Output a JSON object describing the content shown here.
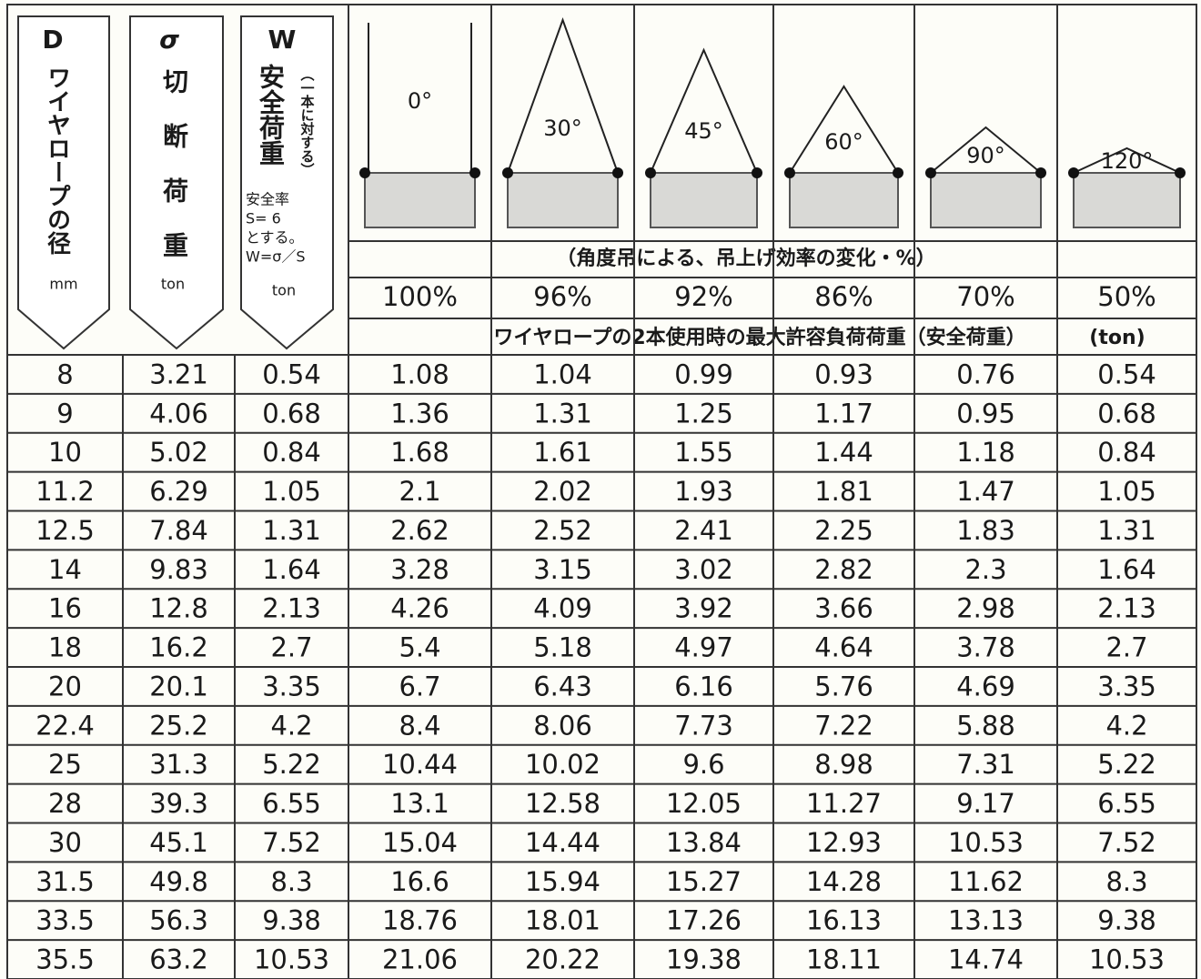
{
  "header": {
    "col_d": {
      "symbol": "D",
      "label": "ワイヤロープの径",
      "unit": "mm"
    },
    "col_sigma": {
      "symbol": "σ",
      "label": "切断荷重",
      "unit": "ton"
    },
    "col_w": {
      "symbol": "W",
      "label": "安全荷重",
      "note": "（一本に対する）",
      "lines": [
        "安全率",
        "S= 6",
        "とする。",
        "W=σ／S"
      ],
      "unit": "ton"
    },
    "angles": [
      "0°",
      "30°",
      "45°",
      "60°",
      "90°",
      "120°"
    ],
    "efficiency_caption": "（角度吊による、吊上げ効率の変化・%）",
    "efficiencies": [
      "100%",
      "96%",
      "92%",
      "86%",
      "70%",
      "50%"
    ],
    "load_caption": "ワイヤロープの2本使用時の最大許容負荷荷重（安全荷重）",
    "load_unit": "(ton)"
  },
  "table": {
    "rows": [
      [
        8,
        3.21,
        0.54,
        1.08,
        1.04,
        0.99,
        0.93,
        0.76,
        0.54
      ],
      [
        9,
        4.06,
        0.68,
        1.36,
        1.31,
        1.25,
        1.17,
        0.95,
        0.68
      ],
      [
        10,
        5.02,
        0.84,
        1.68,
        1.61,
        1.55,
        1.44,
        1.18,
        0.84
      ],
      [
        11.2,
        6.29,
        1.05,
        2.1,
        2.02,
        1.93,
        1.81,
        1.47,
        1.05
      ],
      [
        12.5,
        7.84,
        1.31,
        2.62,
        2.52,
        2.41,
        2.25,
        1.83,
        1.31
      ],
      [
        14,
        9.83,
        1.64,
        3.28,
        3.15,
        3.02,
        2.82,
        2.3,
        1.64
      ],
      [
        16,
        12.8,
        2.13,
        4.26,
        4.09,
        3.92,
        3.66,
        2.98,
        2.13
      ],
      [
        18,
        16.2,
        2.7,
        5.4,
        5.18,
        4.97,
        4.64,
        3.78,
        2.7
      ],
      [
        20,
        20.1,
        3.35,
        6.7,
        6.43,
        6.16,
        5.76,
        4.69,
        3.35
      ],
      [
        22.4,
        25.2,
        4.2,
        8.4,
        8.06,
        7.73,
        7.22,
        5.88,
        4.2
      ],
      [
        25,
        31.3,
        5.22,
        10.44,
        10.02,
        9.6,
        8.98,
        7.31,
        5.22
      ],
      [
        28,
        39.3,
        6.55,
        13.1,
        12.58,
        12.05,
        11.27,
        9.17,
        6.55
      ],
      [
        30,
        45.1,
        7.52,
        15.04,
        14.44,
        13.84,
        12.93,
        10.53,
        7.52
      ],
      [
        31.5,
        49.8,
        8.3,
        16.6,
        15.94,
        15.27,
        14.28,
        11.62,
        8.3
      ],
      [
        33.5,
        56.3,
        9.38,
        18.76,
        18.01,
        17.26,
        16.13,
        13.13,
        9.38
      ],
      [
        35.5,
        63.2,
        10.53,
        21.06,
        20.22,
        19.38,
        18.11,
        14.74,
        10.53
      ]
    ]
  }
}
